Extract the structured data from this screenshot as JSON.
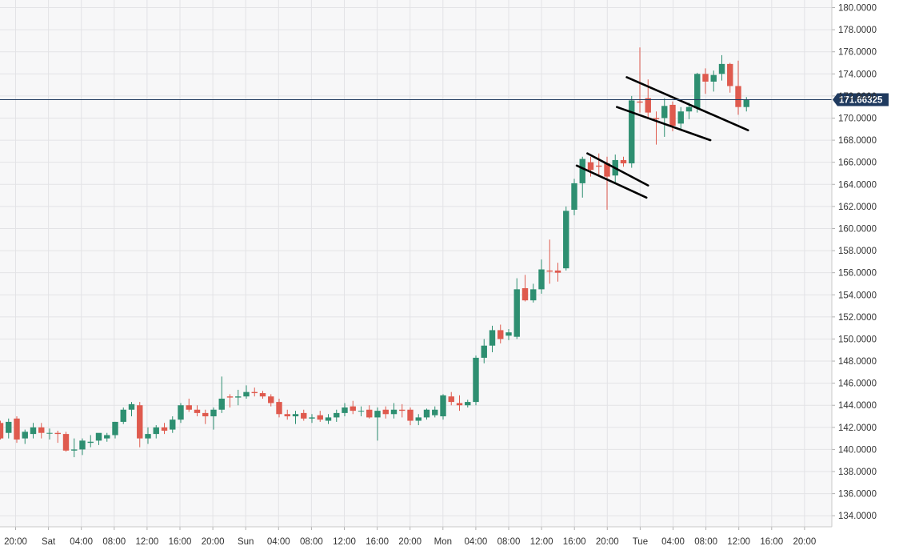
{
  "colors": {
    "background": "#ffffff",
    "plot_background": "#f7f7f8",
    "grid": "#e3e3e6",
    "up": "#2e8f71",
    "down": "#df5a4e",
    "axis_text": "#333333",
    "price_line": "#1f3a5f",
    "price_label_bg": "#1f3a5f",
    "price_label_text": "#ffffff",
    "trendline": "#000000"
  },
  "chart_data": {
    "type": "candlestick",
    "title": "",
    "xlabel": "",
    "ylabel": "",
    "ylim": [
      133.0,
      180.4
    ],
    "y_ticks": [
      "134.0000",
      "136.0000",
      "138.0000",
      "140.0000",
      "142.0000",
      "144.0000",
      "146.0000",
      "148.0000",
      "150.0000",
      "152.0000",
      "154.0000",
      "156.0000",
      "158.0000",
      "160.0000",
      "162.0000",
      "164.0000",
      "166.0000",
      "168.0000",
      "170.0000",
      "172.0000",
      "174.0000",
      "176.0000",
      "178.0000",
      "180.0000"
    ],
    "x_ticks": [
      "20:00",
      "Sat",
      "04:00",
      "08:00",
      "12:00",
      "16:00",
      "20:00",
      "Sun",
      "04:00",
      "08:00",
      "12:00",
      "16:00",
      "20:00",
      "Mon",
      "04:00",
      "08:00",
      "12:00",
      "16:00",
      "20:00",
      "Tue",
      "04:00",
      "08:00",
      "12:00",
      "16:00",
      "20:00"
    ],
    "current_price": 171.66325,
    "current_price_label": "171.66325",
    "grid": true,
    "candles": [
      [
        142.4,
        142.6,
        140.9,
        141.0
      ],
      [
        141.5,
        142.8,
        141.0,
        142.5
      ],
      [
        142.8,
        143.0,
        140.6,
        140.9
      ],
      [
        141.0,
        141.8,
        140.5,
        141.6
      ],
      [
        141.4,
        142.4,
        141.0,
        142.0
      ],
      [
        142.0,
        142.4,
        141.0,
        141.5
      ],
      [
        141.5,
        141.9,
        140.9,
        141.5
      ],
      [
        141.5,
        141.7,
        140.6,
        141.4
      ],
      [
        141.4,
        141.6,
        139.8,
        139.9
      ],
      [
        139.9,
        141.0,
        139.3,
        140.0
      ],
      [
        140.0,
        141.0,
        139.5,
        140.8
      ],
      [
        140.6,
        141.3,
        140.2,
        140.7
      ],
      [
        140.8,
        141.4,
        140.4,
        141.5
      ],
      [
        141.0,
        141.5,
        140.7,
        141.3
      ],
      [
        141.3,
        142.5,
        141.0,
        142.5
      ],
      [
        142.5,
        143.8,
        142.3,
        143.6
      ],
      [
        143.6,
        144.3,
        143.0,
        144.1
      ],
      [
        144.0,
        144.3,
        140.2,
        141.0
      ],
      [
        141.0,
        142.0,
        140.5,
        141.4
      ],
      [
        141.4,
        142.2,
        141.0,
        142.0
      ],
      [
        142.0,
        142.4,
        141.4,
        141.7
      ],
      [
        141.8,
        143.0,
        141.5,
        142.7
      ],
      [
        142.7,
        144.2,
        142.4,
        144.0
      ],
      [
        144.0,
        144.6,
        143.4,
        143.6
      ],
      [
        143.6,
        144.0,
        143.0,
        143.3
      ],
      [
        143.3,
        143.6,
        142.3,
        143.0
      ],
      [
        143.0,
        143.8,
        141.8,
        143.6
      ],
      [
        143.6,
        146.6,
        143.3,
        144.6
      ],
      [
        144.8,
        145.0,
        143.8,
        144.7
      ],
      [
        144.7,
        145.4,
        144.0,
        144.8
      ],
      [
        144.8,
        145.8,
        144.6,
        145.2
      ],
      [
        145.2,
        145.6,
        144.8,
        145.1
      ],
      [
        145.1,
        145.3,
        144.6,
        144.8
      ],
      [
        144.8,
        145.0,
        143.9,
        144.2
      ],
      [
        144.3,
        144.6,
        142.9,
        143.2
      ],
      [
        143.2,
        143.6,
        142.7,
        143.0
      ],
      [
        143.0,
        143.5,
        142.3,
        143.2
      ],
      [
        143.3,
        143.6,
        142.6,
        142.8
      ],
      [
        142.8,
        143.2,
        142.4,
        142.9
      ],
      [
        143.1,
        143.5,
        142.5,
        142.7
      ],
      [
        142.6,
        143.2,
        142.3,
        142.9
      ],
      [
        142.9,
        143.6,
        142.5,
        143.3
      ],
      [
        143.3,
        144.2,
        143.0,
        143.8
      ],
      [
        143.9,
        144.4,
        143.2,
        143.5
      ],
      [
        143.5,
        143.9,
        143.0,
        143.5
      ],
      [
        143.6,
        144.0,
        142.8,
        142.9
      ],
      [
        142.9,
        143.8,
        140.8,
        143.5
      ],
      [
        143.6,
        143.9,
        142.8,
        143.2
      ],
      [
        143.2,
        144.2,
        142.8,
        143.6
      ],
      [
        143.6,
        144.1,
        142.9,
        143.5
      ],
      [
        143.6,
        143.8,
        142.2,
        142.6
      ],
      [
        142.6,
        143.2,
        142.2,
        142.9
      ],
      [
        142.9,
        143.7,
        142.7,
        143.6
      ],
      [
        143.1,
        143.9,
        142.9,
        143.6
      ],
      [
        143.0,
        145.0,
        142.7,
        144.9
      ],
      [
        144.8,
        145.2,
        144.0,
        144.3
      ],
      [
        144.2,
        144.9,
        143.5,
        144.0
      ],
      [
        144.0,
        144.5,
        143.8,
        144.3
      ],
      [
        144.3,
        148.5,
        144.0,
        148.3
      ],
      [
        148.3,
        150.0,
        147.8,
        149.4
      ],
      [
        149.4,
        151.2,
        148.8,
        150.8
      ],
      [
        150.8,
        151.3,
        149.6,
        150.0
      ],
      [
        150.3,
        150.9,
        149.9,
        150.6
      ],
      [
        150.2,
        155.5,
        150.0,
        154.5
      ],
      [
        154.6,
        155.8,
        153.4,
        153.5
      ],
      [
        153.5,
        155.0,
        153.3,
        154.5
      ],
      [
        154.5,
        157.2,
        154.1,
        156.3
      ],
      [
        156.2,
        159.0,
        155.0,
        156.1
      ],
      [
        156.2,
        156.9,
        155.2,
        156.0
      ],
      [
        156.4,
        162.0,
        156.2,
        161.6
      ],
      [
        161.7,
        164.5,
        161.2,
        164.1
      ],
      [
        164.1,
        166.5,
        162.8,
        166.3
      ],
      [
        166.0,
        166.5,
        164.7,
        165.3
      ],
      [
        165.7,
        166.8,
        164.8,
        165.6
      ],
      [
        165.9,
        166.5,
        161.7,
        164.7
      ],
      [
        164.8,
        166.7,
        164.1,
        166.2
      ],
      [
        166.2,
        166.5,
        165.6,
        165.9
      ],
      [
        165.9,
        172.0,
        165.5,
        171.6
      ],
      [
        171.5,
        176.4,
        170.5,
        171.4
      ],
      [
        171.8,
        173.5,
        169.9,
        170.5
      ],
      [
        170.0,
        170.6,
        167.6,
        169.9
      ],
      [
        170.0,
        171.8,
        168.3,
        171.1
      ],
      [
        171.2,
        171.5,
        168.8,
        169.3
      ],
      [
        169.5,
        171.0,
        168.9,
        170.6
      ],
      [
        170.6,
        171.4,
        169.9,
        171.0
      ],
      [
        170.9,
        174.1,
        170.5,
        174.0
      ],
      [
        174.0,
        174.5,
        172.2,
        173.3
      ],
      [
        173.3,
        174.3,
        172.4,
        173.9
      ],
      [
        174.0,
        175.7,
        173.4,
        174.9
      ],
      [
        174.9,
        175.0,
        172.3,
        172.9
      ],
      [
        172.9,
        175.2,
        170.3,
        171.0
      ],
      [
        171.0,
        171.9,
        170.6,
        171.7
      ]
    ],
    "trendlines": [
      {
        "x1": 71.6,
        "y1": 166.8,
        "x2": 79.0,
        "y2": 163.9
      },
      {
        "x1": 70.3,
        "y1": 165.7,
        "x2": 78.8,
        "y2": 162.8
      },
      {
        "x1": 76.4,
        "y1": 173.7,
        "x2": 91.2,
        "y2": 168.9
      },
      {
        "x1": 75.2,
        "y1": 171.0,
        "x2": 86.6,
        "y2": 168.0
      }
    ]
  }
}
